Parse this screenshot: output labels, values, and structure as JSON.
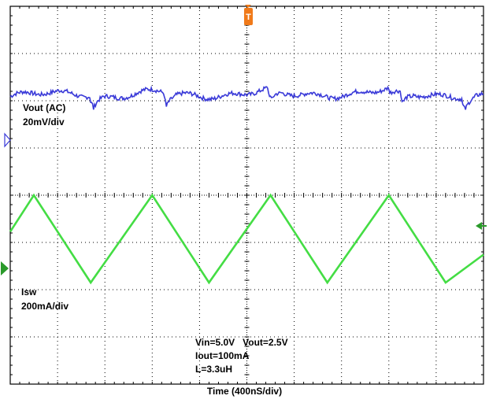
{
  "chart_data": {
    "type": "line",
    "title": "",
    "xlabel": "Time  (400nS/div)",
    "x_divisions": 10,
    "y_divisions": 8,
    "grid": true,
    "trigger_marker": "T",
    "series": [
      {
        "name": "Vout (AC)",
        "scale": "20mV/div",
        "color": "#3a3ad8",
        "description": "small ripple with step transitions",
        "steps_div": [
          1.75,
          3.3,
          5.5,
          8.3,
          9.6
        ]
      },
      {
        "name": "Isw",
        "scale": "200mA/div",
        "color": "#44dd44",
        "peaks_div": [
          0.5,
          3.0,
          5.5,
          8.0
        ],
        "valleys_div": [
          1.7,
          4.2,
          6.7,
          9.2
        ],
        "peak_level_div": 4.0,
        "valley_level_div": 2.15
      }
    ],
    "annotations": {
      "ch1_name": "Vout (AC)",
      "ch1_scale": "20mV/div",
      "ch2_name": "Isw",
      "ch2_scale": "200mA/div",
      "cond_line1": "Vin=5.0V   Vout=2.5V",
      "cond_line2": "Iout=100mA",
      "cond_line3": "L=3.3uH"
    }
  },
  "colors": {
    "grid": "#000000",
    "vout": "#3a3ad8",
    "isw": "#44dd44",
    "trigger": "#f07a1a"
  }
}
